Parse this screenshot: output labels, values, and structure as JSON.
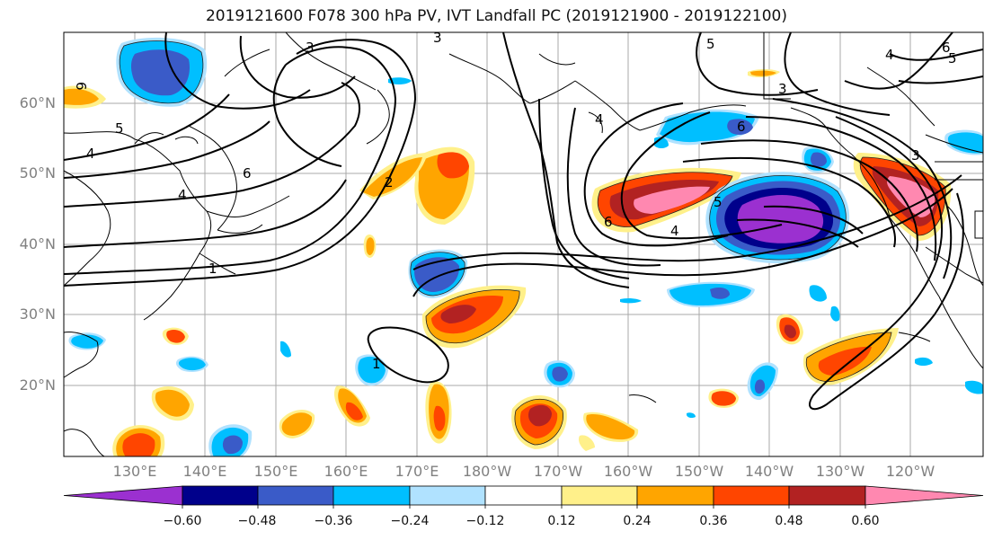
{
  "title": "2019121600 F078 300 hPa PV, IVT Landfall PC (2019121900 - 2019122100)",
  "latitude_labels": [
    "60°N",
    "50°N",
    "40°N",
    "30°N",
    "20°N"
  ],
  "longitude_labels": [
    "130°E",
    "140°E",
    "150°E",
    "160°E",
    "170°E",
    "180°W",
    "170°W",
    "160°W",
    "150°W",
    "140°W",
    "130°W",
    "120°W"
  ],
  "colorbar": {
    "tick_labels": [
      "−0.60",
      "−0.48",
      "−0.36",
      "−0.24",
      "−0.12",
      "0.12",
      "0.24",
      "0.36",
      "0.48",
      "0.60"
    ],
    "colors": [
      "#9b30d0",
      "#00008b",
      "#3a5bc8",
      "#00bfff",
      "#b0e2ff",
      "#ffffff",
      "#fff08a",
      "#ffa500",
      "#ff4500",
      "#b22222",
      "#ff88b0"
    ]
  },
  "contour_labels": [
    "3",
    "3",
    "5",
    "6",
    "5",
    "4",
    "3",
    "5",
    "4",
    "6",
    "4",
    "2",
    "6",
    "6",
    "5",
    "4",
    "1",
    "1",
    "3",
    "4"
  ]
}
